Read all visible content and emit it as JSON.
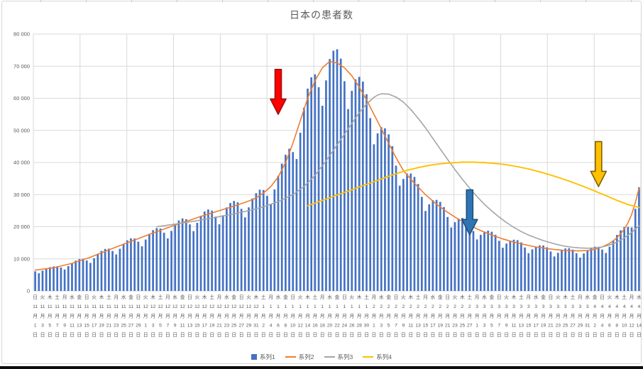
{
  "chart_data": {
    "type": "combo-bar-line",
    "title": "日本の患者数",
    "ylim": [
      0,
      80000
    ],
    "y_tick_step": 10000,
    "y_tick_labels": [
      "0",
      "10 000",
      "20 000",
      "30 000",
      "40 000",
      "50 000",
      "60 000",
      "70 000",
      "80 000"
    ],
    "grid": "on",
    "legend_position": "bottom",
    "colors": {
      "grid": "#D9D9D9",
      "axis_text": "#595959"
    },
    "x": {
      "unit": "day",
      "n_days": 165,
      "first_day": "日 11月1日",
      "last_day": "水 4月14日",
      "tick_every_days": 2,
      "month_suffix": "月",
      "day_suffix": "日",
      "tick_labels": [
        [
          "日",
          "11",
          "1"
        ],
        [
          "火",
          "11",
          "3"
        ],
        [
          "木",
          "11",
          "5"
        ],
        [
          "土",
          "11",
          "7"
        ],
        [
          "月",
          "11",
          "9"
        ],
        [
          "水",
          "11",
          "11"
        ],
        [
          "金",
          "11",
          "13"
        ],
        [
          "日",
          "11",
          "15"
        ],
        [
          "火",
          "11",
          "17"
        ],
        [
          "木",
          "11",
          "19"
        ],
        [
          "土",
          "11",
          "21"
        ],
        [
          "月",
          "11",
          "23"
        ],
        [
          "水",
          "11",
          "25"
        ],
        [
          "金",
          "11",
          "27"
        ],
        [
          "日",
          "11",
          "29"
        ],
        [
          "火",
          "12",
          "1"
        ],
        [
          "木",
          "12",
          "3"
        ],
        [
          "土",
          "12",
          "5"
        ],
        [
          "月",
          "12",
          "7"
        ],
        [
          "水",
          "12",
          "9"
        ],
        [
          "金",
          "12",
          "11"
        ],
        [
          "日",
          "12",
          "13"
        ],
        [
          "火",
          "12",
          "15"
        ],
        [
          "木",
          "12",
          "17"
        ],
        [
          "土",
          "12",
          "19"
        ],
        [
          "月",
          "12",
          "21"
        ],
        [
          "水",
          "12",
          "23"
        ],
        [
          "金",
          "12",
          "25"
        ],
        [
          "日",
          "12",
          "27"
        ],
        [
          "火",
          "12",
          "29"
        ],
        [
          "木",
          "12",
          "31"
        ],
        [
          "土",
          "1",
          "2"
        ],
        [
          "月",
          "1",
          "4"
        ],
        [
          "水",
          "1",
          "6"
        ],
        [
          "金",
          "1",
          "8"
        ],
        [
          "日",
          "1",
          "10"
        ],
        [
          "火",
          "1",
          "12"
        ],
        [
          "木",
          "1",
          "14"
        ],
        [
          "土",
          "1",
          "16"
        ],
        [
          "月",
          "1",
          "18"
        ],
        [
          "水",
          "1",
          "20"
        ],
        [
          "金",
          "1",
          "22"
        ],
        [
          "日",
          "1",
          "24"
        ],
        [
          "火",
          "1",
          "26"
        ],
        [
          "木",
          "1",
          "28"
        ],
        [
          "土",
          "1",
          "30"
        ],
        [
          "月",
          "2",
          "1"
        ],
        [
          "水",
          "2",
          "3"
        ],
        [
          "金",
          "2",
          "5"
        ],
        [
          "日",
          "2",
          "7"
        ],
        [
          "火",
          "2",
          "9"
        ],
        [
          "木",
          "2",
          "11"
        ],
        [
          "土",
          "2",
          "13"
        ],
        [
          "月",
          "2",
          "15"
        ],
        [
          "水",
          "2",
          "17"
        ],
        [
          "金",
          "2",
          "19"
        ],
        [
          "日",
          "2",
          "21"
        ],
        [
          "火",
          "2",
          "23"
        ],
        [
          "木",
          "2",
          "25"
        ],
        [
          "土",
          "2",
          "27"
        ],
        [
          "月",
          "3",
          "1"
        ],
        [
          "水",
          "3",
          "3"
        ],
        [
          "金",
          "3",
          "5"
        ],
        [
          "日",
          "3",
          "7"
        ],
        [
          "火",
          "3",
          "9"
        ],
        [
          "木",
          "3",
          "11"
        ],
        [
          "土",
          "3",
          "13"
        ],
        [
          "月",
          "3",
          "15"
        ],
        [
          "水",
          "3",
          "17"
        ],
        [
          "金",
          "3",
          "19"
        ],
        [
          "日",
          "3",
          "21"
        ],
        [
          "火",
          "3",
          "23"
        ],
        [
          "木",
          "3",
          "25"
        ],
        [
          "土",
          "3",
          "27"
        ],
        [
          "月",
          "3",
          "29"
        ],
        [
          "水",
          "3",
          "31"
        ],
        [
          "金",
          "4",
          "2"
        ],
        [
          "日",
          "4",
          "4"
        ],
        [
          "火",
          "4",
          "6"
        ],
        [
          "木",
          "4",
          "8"
        ],
        [
          "土",
          "4",
          "10"
        ],
        [
          "月",
          "4",
          "12"
        ],
        [
          "水",
          "4",
          "14"
        ]
      ]
    },
    "series": [
      {
        "name": "系列1",
        "type": "bar",
        "color": "#4472C4",
        "start_index": 0,
        "values": [
          6110,
          5510,
          6310,
          6990,
          7410,
          7630,
          7700,
          7290,
          6670,
          7740,
          8690,
          9430,
          9920,
          10030,
          9510,
          8720,
          10190,
          11530,
          12470,
          13080,
          13180,
          12450,
          11350,
          13130,
          14710,
          15750,
          16370,
          16360,
          15340,
          13910,
          16000,
          17800,
          18940,
          19570,
          19450,
          18140,
          16350,
          18690,
          20710,
          21950,
          22580,
          22330,
          20740,
          18630,
          21220,
          23430,
          24740,
          25360,
          25010,
          23160,
          20750,
          23580,
          25980,
          27380,
          28030,
          27600,
          25570,
          22910,
          26040,
          28790,
          30450,
          31540,
          31420,
          29610,
          26980,
          31620,
          35860,
          39640,
          42400,
          44290,
          43240,
          41090,
          49290,
          57070,
          63000,
          66520,
          67470,
          63450,
          57690,
          65570,
          72220,
          74810,
          75260,
          72360,
          65330,
          56650,
          62310,
          65900,
          66680,
          65190,
          61290,
          53820,
          45650,
          49060,
          51010,
          50660,
          48760,
          45060,
          39010,
          32790,
          34880,
          36530,
          36570,
          35510,
          33300,
          29300,
          24900,
          26970,
          28280,
          28350,
          27740,
          26090,
          23030,
          19730,
          21420,
          22520,
          22750,
          22290,
          21010,
          18680,
          16040,
          17480,
          18510,
          18760,
          18440,
          17510,
          15600,
          13450,
          14760,
          15690,
          15960,
          15830,
          15110,
          13540,
          11760,
          12950,
          13840,
          14210,
          14170,
          13600,
          12290,
          10730,
          11900,
          12830,
          13230,
          13300,
          12880,
          11750,
          10380,
          11670,
          12730,
          13440,
          13780,
          13750,
          12880,
          11830,
          13760,
          15760,
          17430,
          18870,
          19880,
          19930,
          19750,
          25580,
          32320
        ]
      },
      {
        "name": "系列2",
        "type": "line",
        "color": "#ED7D31",
        "start_index": 0,
        "values": [
          6500,
          6640,
          6780,
          6920,
          7060,
          7200,
          7480,
          7760,
          8040,
          8320,
          8600,
          8980,
          9360,
          9740,
          10120,
          10500,
          10960,
          11420,
          11880,
          12340,
          12800,
          13240,
          13680,
          14120,
          14560,
          15000,
          15440,
          15880,
          16320,
          16760,
          17200,
          17620,
          18040,
          18460,
          18880,
          19300,
          19700,
          20100,
          20500,
          20900,
          21300,
          21680,
          22060,
          22440,
          22820,
          23200,
          23560,
          23920,
          24280,
          24640,
          25000,
          25360,
          25720,
          26080,
          26440,
          26800,
          27200,
          27600,
          28000,
          28500,
          29000,
          29750,
          30500,
          31500,
          32500,
          34000,
          35500,
          37750,
          40000,
          43000,
          46000,
          49500,
          53000,
          56500,
          60000,
          62750,
          65500,
          67500,
          69500,
          70500,
          71500,
          71250,
          71000,
          70250,
          69500,
          68250,
          67000,
          65250,
          63500,
          61500,
          59500,
          57250,
          55000,
          52750,
          50500,
          48250,
          46000,
          43750,
          41500,
          39500,
          37500,
          36170,
          34830,
          33500,
          32330,
          31170,
          30000,
          29000,
          28000,
          27000,
          26170,
          25330,
          24500,
          23770,
          23030,
          22300,
          21670,
          21030,
          20400,
          19870,
          19330,
          18800,
          18330,
          17870,
          17400,
          17000,
          16600,
          16200,
          15870,
          15530,
          15200,
          14930,
          14670,
          14400,
          14170,
          13930,
          13700,
          13530,
          13370,
          13200,
          13070,
          12930,
          12800,
          12700,
          12600,
          12550,
          12500,
          12500,
          12500,
          12550,
          12600,
          12800,
          13000,
          13350,
          13700,
          14250,
          14800,
          15600,
          16600,
          17800,
          19300,
          21200,
          23800,
          27500,
          32000
        ]
      },
      {
        "name": "系列3",
        "type": "line",
        "color": "#A5A5A5",
        "start_index": 33,
        "values": [
          20000,
          20160,
          20320,
          20480,
          20640,
          20800,
          20980,
          21160,
          21340,
          21520,
          21700,
          21900,
          22100,
          22300,
          22500,
          22700,
          22920,
          23140,
          23360,
          23580,
          23800,
          24040,
          24280,
          24520,
          24760,
          25000,
          25300,
          25600,
          25900,
          26200,
          26600,
          27000,
          27400,
          27800,
          28350,
          28900,
          29450,
          30000,
          30830,
          31670,
          32500,
          33670,
          34830,
          36000,
          37500,
          39000,
          40500,
          42170,
          43830,
          45500,
          47170,
          48830,
          50500,
          52170,
          53830,
          55500,
          56850,
          58200,
          59250,
          60300,
          61000,
          61400,
          61350,
          61300,
          60850,
          60400,
          59600,
          58800,
          57650,
          56500,
          55150,
          53800,
          52300,
          50800,
          49150,
          47500,
          45850,
          44200,
          42600,
          41000,
          39400,
          37800,
          36300,
          34800,
          33400,
          32000,
          30700,
          29400,
          28200,
          27000,
          25950,
          24900,
          23950,
          23000,
          22150,
          21300,
          20550,
          19800,
          19150,
          18500,
          17950,
          17400,
          16950,
          16500,
          16100,
          15700,
          15350,
          15000,
          14700,
          14400,
          14150,
          13900,
          13750,
          13600,
          13500,
          13400,
          13350,
          13300,
          13350,
          13400,
          13550,
          13700,
          14000,
          14300,
          14750,
          15200,
          15850,
          16500,
          17350,
          18200,
          19250,
          20300
        ]
      },
      {
        "name": "系列4",
        "type": "line",
        "color": "#FFC000",
        "start_index": 74,
        "values": [
          26500,
          26930,
          27370,
          27800,
          28200,
          28600,
          29000,
          29430,
          29870,
          30300,
          30700,
          31100,
          31500,
          31930,
          32370,
          32800,
          33200,
          33600,
          34000,
          34430,
          34870,
          35300,
          35700,
          36100,
          36500,
          36870,
          37230,
          37600,
          37870,
          38130,
          38400,
          38630,
          38870,
          39100,
          39270,
          39430,
          39600,
          39700,
          39800,
          39900,
          39970,
          40030,
          40100,
          40100,
          40100,
          40100,
          40070,
          40030,
          40000,
          39900,
          39800,
          39700,
          39570,
          39430,
          39300,
          39100,
          38900,
          38700,
          38470,
          38230,
          38000,
          37700,
          37400,
          37100,
          36770,
          36430,
          36100,
          35730,
          35370,
          35000,
          34600,
          34200,
          33800,
          33370,
          32930,
          32500,
          32030,
          31570,
          31100,
          30630,
          30170,
          29700,
          29200,
          28700,
          28200,
          27770,
          27330,
          26900,
          26600,
          26300,
          26000
        ]
      }
    ],
    "annotations": [
      {
        "name": "red-down-arrow",
        "shape": "down-arrow",
        "fill": "#FF0000",
        "stroke": "#A01010",
        "x_index": 66,
        "value_top": 69000,
        "value_tip": 55000
      },
      {
        "name": "blue-down-arrow",
        "shape": "down-arrow",
        "fill": "#2E75B6",
        "stroke": "#1F4E79",
        "x_index": 118,
        "value_top": 31500,
        "value_tip": 17500
      },
      {
        "name": "gold-down-arrow",
        "shape": "down-arrow",
        "fill": "#FFC000",
        "stroke": "#7F6000",
        "x_index": 153,
        "value_top": 46500,
        "value_tip": 32500
      }
    ]
  }
}
